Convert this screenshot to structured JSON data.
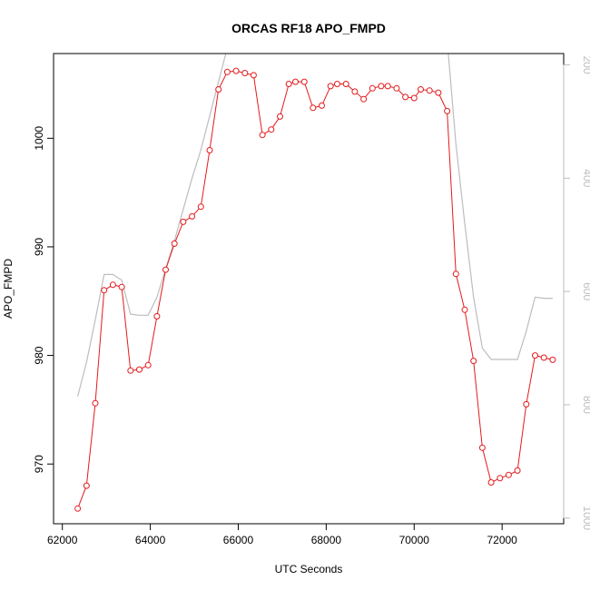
{
  "chart_data": {
    "type": "line",
    "title": "ORCAS RF18 APO_FMPD",
    "xlabel": "UTC Seconds",
    "ylabel": "APO_FMPD",
    "xlim": [
      61800,
      73400
    ],
    "ylim": [
      964.5,
      1007.8
    ],
    "y2lim": [
      1010,
      180
    ],
    "x_ticks": [
      62000,
      64000,
      66000,
      68000,
      70000,
      72000
    ],
    "y_ticks": [
      970,
      980,
      990,
      1000
    ],
    "y2_ticks": [
      200,
      400,
      600,
      800,
      1000
    ],
    "series": [
      {
        "style": "points-line",
        "color": "#e41a1c",
        "x": [
          62350,
          62550,
          62750,
          62950,
          63150,
          63350,
          63550,
          63750,
          63950,
          64150,
          64350,
          64550,
          64750,
          64950,
          65150,
          65350,
          65550,
          65750,
          65950,
          66150,
          66350,
          66550,
          66750,
          66950,
          67150,
          67300,
          67500,
          67700,
          67900,
          68100,
          68250,
          68450,
          68650,
          68850,
          69050,
          69250,
          69400,
          69600,
          69800,
          70000,
          70150,
          70350,
          70550,
          70750,
          70950,
          71150,
          71350,
          71550,
          71750,
          71950,
          72150,
          72350,
          72550,
          72750,
          72950,
          73150
        ],
        "y": [
          965.9,
          968.0,
          975.6,
          986.0,
          986.5,
          986.3,
          978.6,
          978.7,
          979.1,
          983.6,
          987.9,
          990.3,
          992.3,
          992.8,
          993.7,
          998.9,
          1004.5,
          1006.1,
          1006.2,
          1006.0,
          1005.8,
          1000.3,
          1000.8,
          1002.0,
          1005.0,
          1005.2,
          1005.2,
          1002.8,
          1003.0,
          1004.8,
          1005.0,
          1005.0,
          1004.3,
          1003.6,
          1004.6,
          1004.8,
          1004.8,
          1004.6,
          1003.8,
          1003.7,
          1004.5,
          1004.4,
          1004.2,
          1002.5,
          987.5,
          984.2,
          979.5,
          971.5,
          968.3,
          968.7,
          969.0,
          969.4,
          975.5,
          980.0,
          979.8,
          979.6
        ]
      },
      {
        "style": "line",
        "color": "#bdbdbd",
        "axis": "right",
        "x": [
          62350,
          62550,
          62750,
          62950,
          63150,
          63350,
          63550,
          63750,
          63950,
          64150,
          64350,
          64550,
          64750,
          64950,
          65150,
          65350,
          65550,
          65750,
          66050,
          66350,
          66550,
          66750,
          66950,
          67150,
          67300,
          67500,
          67700,
          67900,
          68100,
          68250,
          68450,
          68650,
          68850,
          69050,
          69250,
          69400,
          69600,
          69800,
          70000,
          70150,
          70350,
          70550,
          70750,
          70950,
          71150,
          71350,
          71550,
          71750,
          71950,
          72150,
          72350,
          72550,
          72750,
          72950,
          73150
        ],
        "y": [
          785,
          725,
          650,
          570,
          570,
          580,
          640,
          642,
          642,
          610,
          560,
          510,
          455,
          400,
          350,
          290,
          230,
          170,
          150,
          150,
          170,
          170,
          155,
          160,
          160,
          155,
          150,
          155,
          150,
          145,
          150,
          150,
          145,
          150,
          155,
          150,
          150,
          155,
          150,
          140,
          130,
          120,
          155,
          340,
          480,
          610,
          700,
          720,
          720,
          720,
          720,
          670,
          610,
          612,
          612
        ]
      }
    ]
  }
}
